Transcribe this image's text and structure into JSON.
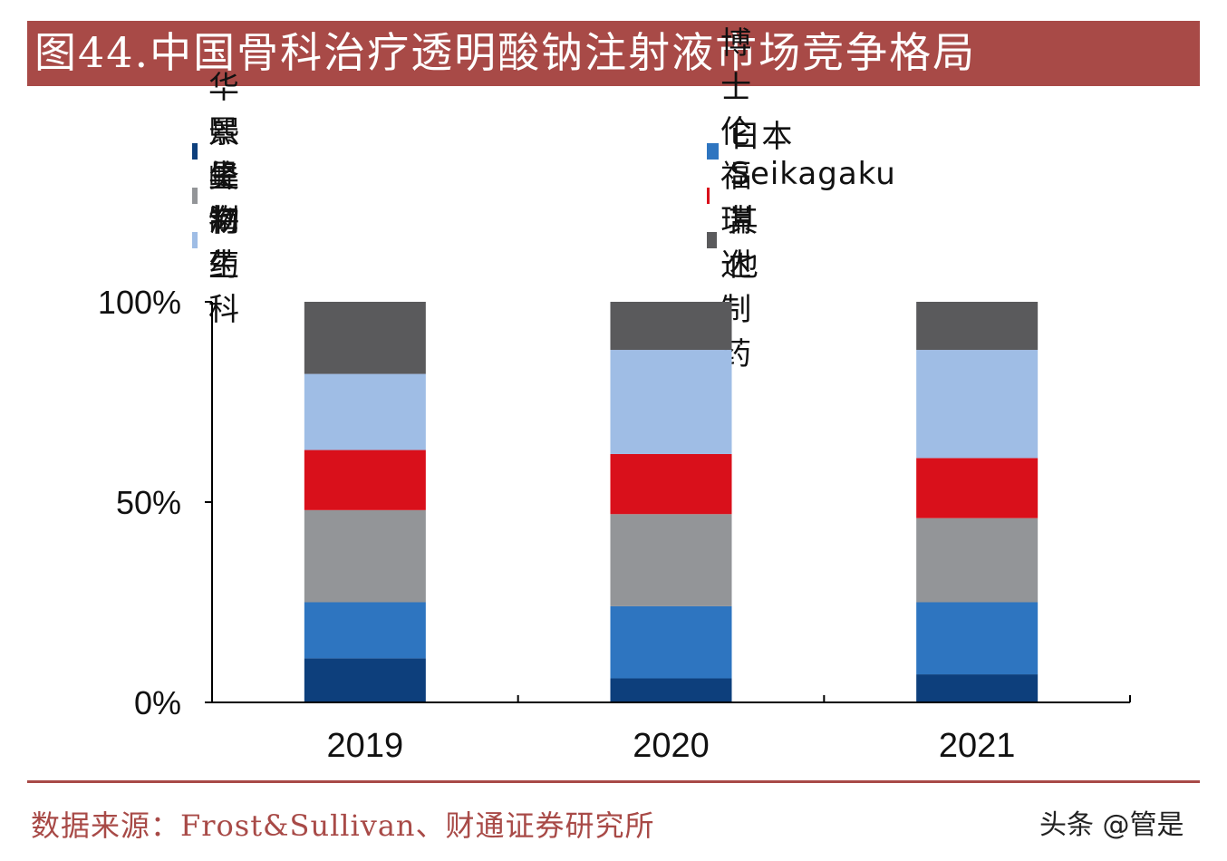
{
  "title": "图44.中国骨科治疗透明酸钠注射液市场竞争格局",
  "source": "数据来源：Frost&Sullivan、财通证券研究所",
  "watermark": "头条 @管是",
  "chart_data": {
    "type": "bar",
    "stacked": true,
    "categories": [
      "2019",
      "2020",
      "2021"
    ],
    "y_ticks": [
      "0%",
      "50%",
      "100%"
    ],
    "ylim": [
      0,
      100
    ],
    "legend_position": "top",
    "series": [
      {
        "name": "华熙生物",
        "color": "#0d3f7c",
        "values": [
          11,
          6,
          7
        ]
      },
      {
        "name": "日本Seikagaku",
        "color": "#2e75c0",
        "values": [
          14,
          18,
          18
        ]
      },
      {
        "name": "景峰制药",
        "color": "#939598",
        "values": [
          23,
          23,
          21
        ]
      },
      {
        "name": "博士伦福瑞达制药",
        "color": "#d9101b",
        "values": [
          15,
          15,
          15
        ]
      },
      {
        "name": "昊海生科",
        "color": "#9fbde5",
        "values": [
          19,
          26,
          27
        ]
      },
      {
        "name": "其他",
        "color": "#5a5a5c",
        "values": [
          18,
          12,
          12
        ]
      }
    ]
  }
}
